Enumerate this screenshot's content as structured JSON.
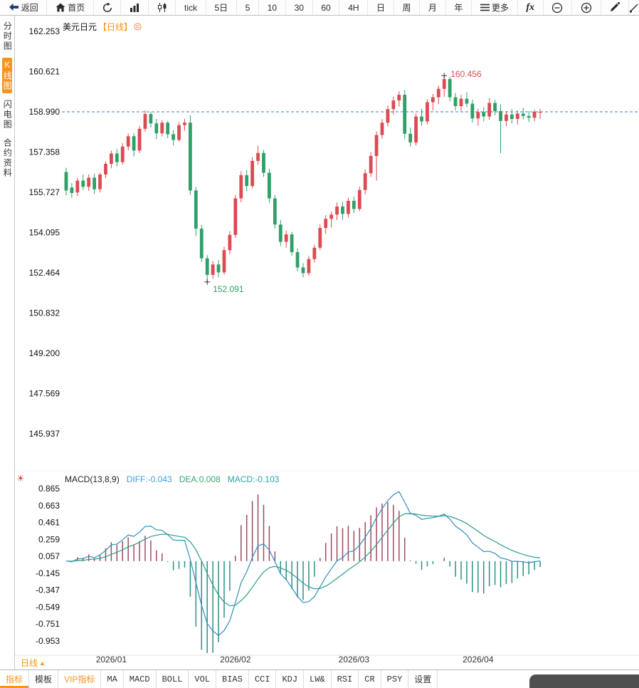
{
  "toolbar": {
    "items": [
      {
        "name": "back-button",
        "icon": "back-arrow-icon",
        "label": "返回"
      },
      {
        "name": "home-button",
        "icon": "home-icon",
        "label": "首页"
      },
      {
        "name": "refresh-button",
        "icon": "refresh-icon"
      },
      {
        "name": "bar-chart-button",
        "icon": "bar-chart-icon"
      },
      {
        "name": "candlestick-chart-button",
        "icon": "candlestick-icon"
      },
      {
        "name": "period-tick-button",
        "label": "tick"
      },
      {
        "name": "period-5d-button",
        "label": "5日"
      },
      {
        "name": "period-5-button",
        "label": "5"
      },
      {
        "name": "period-10-button",
        "label": "10"
      },
      {
        "name": "period-30-button",
        "label": "30"
      },
      {
        "name": "period-60-button",
        "label": "60"
      },
      {
        "name": "period-4h-button",
        "label": "4H"
      },
      {
        "name": "period-day-button",
        "label": "日"
      },
      {
        "name": "period-week-button",
        "label": "周"
      },
      {
        "name": "period-month-button",
        "label": "月"
      },
      {
        "name": "period-year-button",
        "label": "年"
      },
      {
        "name": "more-button",
        "icon": "menu-icon",
        "label": "更多"
      },
      {
        "name": "fx-button",
        "icon": "fx-icon"
      },
      {
        "name": "zoom-out-button",
        "icon": "zoom-out-icon"
      },
      {
        "name": "zoom-in-button",
        "icon": "zoom-in-icon"
      },
      {
        "name": "draw-line-button",
        "icon": "pencil-icon"
      },
      {
        "name": "clipped-tool-button",
        "icon": "clipped-tool-icon"
      }
    ]
  },
  "sidebar": {
    "items": [
      {
        "name": "sidebar-item-time-chart",
        "label": "分时图",
        "active": false
      },
      {
        "name": "sidebar-item-kline-chart",
        "label": "K线图",
        "active": true
      },
      {
        "name": "sidebar-item-lightning-chart",
        "label": "闪电图",
        "active": false
      },
      {
        "name": "sidebar-item-contract-info",
        "label": "合约资料",
        "active": false
      }
    ]
  },
  "chart": {
    "symbol": "美元日元",
    "period_tag": "【日线】"
  },
  "macd_legend": {
    "title": "MACD(13,8,9)",
    "diff": "DIFF:-0.043",
    "dea": "DEA:0.008",
    "macd": "MACD:-0.103"
  },
  "period_selector": {
    "label": "日线",
    "arrow": "▲"
  },
  "tabbar": {
    "items": [
      {
        "name": "tab-indicators",
        "label": "指标",
        "active": true
      },
      {
        "name": "tab-templates",
        "label": "模板"
      },
      {
        "name": "tab-vip-indicators",
        "label": "VIP指标",
        "vip": true
      },
      {
        "name": "tab-ma",
        "label": "MA"
      },
      {
        "name": "tab-macd",
        "label": "MACD"
      },
      {
        "name": "tab-boll",
        "label": "BOLL"
      },
      {
        "name": "tab-vol",
        "label": "VOL"
      },
      {
        "name": "tab-bias",
        "label": "BIAS"
      },
      {
        "name": "tab-cci",
        "label": "CCI"
      },
      {
        "name": "tab-kdj",
        "label": "KDJ"
      },
      {
        "name": "tab-lw",
        "label": "LW&"
      },
      {
        "name": "tab-rsi",
        "label": "RSI"
      },
      {
        "name": "tab-cr",
        "label": "CR"
      },
      {
        "name": "tab-psy",
        "label": "PSY"
      },
      {
        "name": "tab-settings",
        "label": "设置"
      }
    ]
  },
  "colors": {
    "up": "#dd4b52",
    "down": "#2fa069",
    "dashed_line": "#3a7bbf",
    "macd_pos": "#9e4a5e",
    "macd_neg": "#2e8f85",
    "diff_line": "#2f8fbe",
    "dea_line": "#2a9d8f",
    "accent": "#f7941d",
    "marker": "#333333"
  },
  "chart_data": {
    "type": "candlestick+macd",
    "title": "美元日元【日线】",
    "current_price": 158.99,
    "macd_params": "MACD(13,8,9)",
    "price_axis": {
      "max": 162.253,
      "min": 145.937,
      "ticks": [
        "162.253",
        "160.621",
        "158.990",
        "157.358",
        "155.727",
        "154.095",
        "152.464",
        "150.832",
        "149.200",
        "147.569",
        "145.937"
      ]
    },
    "macd_axis": {
      "max": 0.865,
      "min": -0.953,
      "ticks": [
        "0.865",
        "0.663",
        "0.461",
        "0.259",
        "0.057",
        "-0.145",
        "-0.347",
        "-0.549",
        "-0.751",
        "-0.953"
      ]
    },
    "x_labels": [
      {
        "label": "2026/01",
        "index": 8
      },
      {
        "label": "2026/02",
        "index": 30
      },
      {
        "label": "2026/03",
        "index": 51
      },
      {
        "label": "2026/04",
        "index": 73
      }
    ],
    "annotations": {
      "high": {
        "label": "160.456",
        "index": 67
      },
      "low": {
        "label": "152.091",
        "index": 25
      }
    },
    "candles": [
      [
        156.55,
        156.72,
        155.6,
        155.8
      ],
      [
        155.92,
        156.1,
        155.5,
        155.7
      ],
      [
        155.72,
        156.32,
        155.58,
        156.2
      ],
      [
        156.2,
        156.45,
        155.82,
        155.95
      ],
      [
        155.95,
        156.45,
        155.78,
        156.32
      ],
      [
        156.32,
        156.48,
        155.65,
        155.85
      ],
      [
        155.85,
        156.52,
        155.72,
        156.45
      ],
      [
        156.45,
        156.98,
        156.3,
        156.88
      ],
      [
        156.88,
        157.42,
        156.7,
        157.3
      ],
      [
        157.3,
        157.48,
        156.78,
        156.95
      ],
      [
        156.95,
        157.72,
        156.85,
        157.58
      ],
      [
        157.58,
        158.12,
        157.42,
        158.0
      ],
      [
        158.0,
        158.12,
        157.18,
        157.42
      ],
      [
        157.42,
        158.42,
        157.32,
        158.3
      ],
      [
        158.3,
        159.05,
        158.18,
        158.9
      ],
      [
        158.9,
        158.98,
        158.35,
        158.52
      ],
      [
        158.52,
        158.7,
        157.88,
        158.12
      ],
      [
        158.12,
        158.65,
        158.0,
        158.55
      ],
      [
        158.55,
        158.62,
        157.92,
        158.08
      ],
      [
        158.08,
        158.25,
        157.62,
        157.85
      ],
      [
        157.85,
        158.58,
        157.78,
        158.45
      ],
      [
        158.45,
        158.7,
        158.22,
        158.55
      ],
      [
        158.55,
        158.85,
        155.62,
        155.8
      ],
      [
        155.8,
        155.95,
        153.95,
        154.25
      ],
      [
        154.25,
        154.4,
        152.9,
        153.05
      ],
      [
        153.05,
        153.18,
        152.091,
        152.38
      ],
      [
        152.38,
        152.95,
        152.22,
        152.8
      ],
      [
        152.8,
        152.98,
        152.28,
        152.48
      ],
      [
        152.48,
        153.52,
        152.38,
        153.38
      ],
      [
        153.38,
        154.15,
        153.22,
        154.0
      ],
      [
        154.0,
        155.62,
        153.88,
        155.48
      ],
      [
        155.48,
        156.58,
        155.32,
        156.42
      ],
      [
        156.42,
        156.62,
        155.78,
        155.98
      ],
      [
        155.98,
        157.15,
        155.88,
        157.0
      ],
      [
        157.0,
        157.62,
        156.85,
        157.32
      ],
      [
        157.32,
        157.45,
        156.35,
        156.52
      ],
      [
        156.52,
        156.68,
        155.3,
        155.48
      ],
      [
        155.48,
        155.62,
        154.25,
        154.42
      ],
      [
        154.42,
        154.6,
        153.55,
        153.72
      ],
      [
        153.72,
        154.18,
        153.48,
        154.02
      ],
      [
        154.02,
        154.12,
        153.15,
        153.3
      ],
      [
        153.3,
        153.45,
        152.52,
        152.68
      ],
      [
        152.68,
        152.85,
        152.28,
        152.45
      ],
      [
        152.45,
        153.15,
        152.35,
        153.02
      ],
      [
        153.02,
        153.6,
        152.88,
        153.48
      ],
      [
        153.48,
        154.42,
        153.38,
        154.28
      ],
      [
        154.28,
        154.8,
        154.05,
        154.65
      ],
      [
        154.65,
        154.95,
        154.3,
        154.82
      ],
      [
        154.82,
        155.32,
        154.6,
        155.15
      ],
      [
        155.15,
        155.35,
        154.62,
        154.85
      ],
      [
        154.85,
        155.5,
        154.7,
        155.38
      ],
      [
        155.38,
        155.55,
        154.88,
        155.05
      ],
      [
        155.05,
        155.95,
        154.95,
        155.82
      ],
      [
        155.82,
        156.65,
        155.65,
        156.5
      ],
      [
        156.5,
        157.35,
        156.35,
        157.2
      ],
      [
        157.2,
        158.2,
        156.2,
        158.05
      ],
      [
        158.05,
        158.7,
        157.9,
        158.55
      ],
      [
        158.55,
        159.25,
        158.4,
        159.1
      ],
      [
        159.1,
        159.6,
        158.88,
        159.45
      ],
      [
        159.45,
        159.82,
        159.2,
        159.68
      ],
      [
        159.68,
        159.88,
        157.88,
        158.1
      ],
      [
        158.1,
        158.35,
        157.58,
        157.75
      ],
      [
        157.75,
        158.92,
        157.62,
        158.8
      ],
      [
        158.8,
        159.12,
        158.42,
        158.6
      ],
      [
        158.6,
        159.5,
        158.48,
        159.38
      ],
      [
        159.38,
        159.72,
        159.05,
        159.58
      ],
      [
        159.58,
        160.05,
        159.3,
        159.92
      ],
      [
        159.92,
        160.456,
        159.6,
        160.32
      ],
      [
        160.32,
        160.4,
        159.42,
        159.58
      ],
      [
        159.58,
        159.75,
        159.05,
        159.22
      ],
      [
        159.22,
        159.68,
        159.02,
        159.52
      ],
      [
        159.52,
        159.78,
        159.18,
        159.32
      ],
      [
        159.32,
        159.48,
        158.55,
        158.72
      ],
      [
        158.72,
        159.12,
        158.42,
        158.98
      ],
      [
        158.98,
        159.18,
        158.6,
        158.8
      ],
      [
        158.8,
        159.55,
        158.66,
        159.35
      ],
      [
        159.35,
        159.48,
        158.85,
        159.02
      ],
      [
        159.02,
        159.3,
        157.32,
        158.62
      ],
      [
        158.62,
        159.02,
        158.4,
        158.88
      ],
      [
        158.88,
        159.1,
        158.52,
        158.7
      ],
      [
        158.7,
        159.05,
        158.48,
        158.92
      ],
      [
        158.92,
        159.15,
        158.68,
        158.82
      ],
      [
        158.82,
        159.02,
        158.58,
        158.75
      ],
      [
        158.75,
        159.08,
        158.6,
        158.99
      ],
      [
        158.99,
        159.1,
        158.7,
        158.99
      ]
    ]
  }
}
